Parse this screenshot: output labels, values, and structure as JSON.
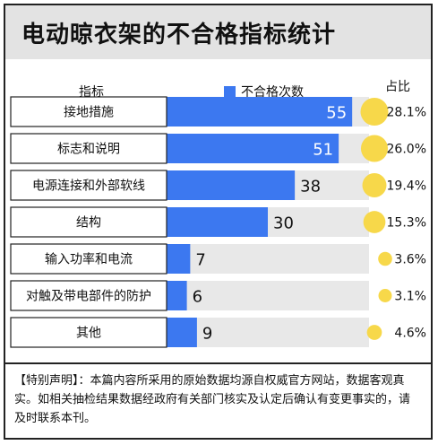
{
  "title": "电动晾衣架的不合格指标统计",
  "header": {
    "indicator_label": "指标",
    "legend_label": "不合格次数",
    "share_label": "占比"
  },
  "colors": {
    "bar": "#3c78f0",
    "bar_track": "#e8e8e8",
    "bubble": "#f7d84a",
    "title_bg": "#e3e3e3"
  },
  "chart_data": {
    "type": "bar",
    "orientation": "horizontal",
    "categories": [
      "接地措施",
      "标志和说明",
      "电源连接和外部软线",
      "结构",
      "输入功率和电流",
      "对触及带电部件的防护",
      "其他"
    ],
    "values": [
      55,
      51,
      38,
      30,
      7,
      6,
      9
    ],
    "value_labels": [
      "55",
      "51",
      "38",
      "30",
      "7",
      "6",
      "9"
    ],
    "shares": [
      28.1,
      26.0,
      19.4,
      15.3,
      3.6,
      3.1,
      4.6
    ],
    "share_labels": [
      "28.1%",
      "26.0%",
      "19.4%",
      "15.3%",
      "3.6%",
      "3.1%",
      "4.6%"
    ],
    "series": [
      {
        "name": "不合格次数",
        "values": [
          55,
          51,
          38,
          30,
          7,
          6,
          9
        ]
      }
    ],
    "xlim": [
      0,
      60
    ]
  },
  "footnote": "【特别声明】：本篇内容所采用的原始数据均源自权威官方网站，数据客观真实。如相关抽检结果数据经政府有关部门核实及认定后确认有变更事实的，请及时联系本刊。"
}
